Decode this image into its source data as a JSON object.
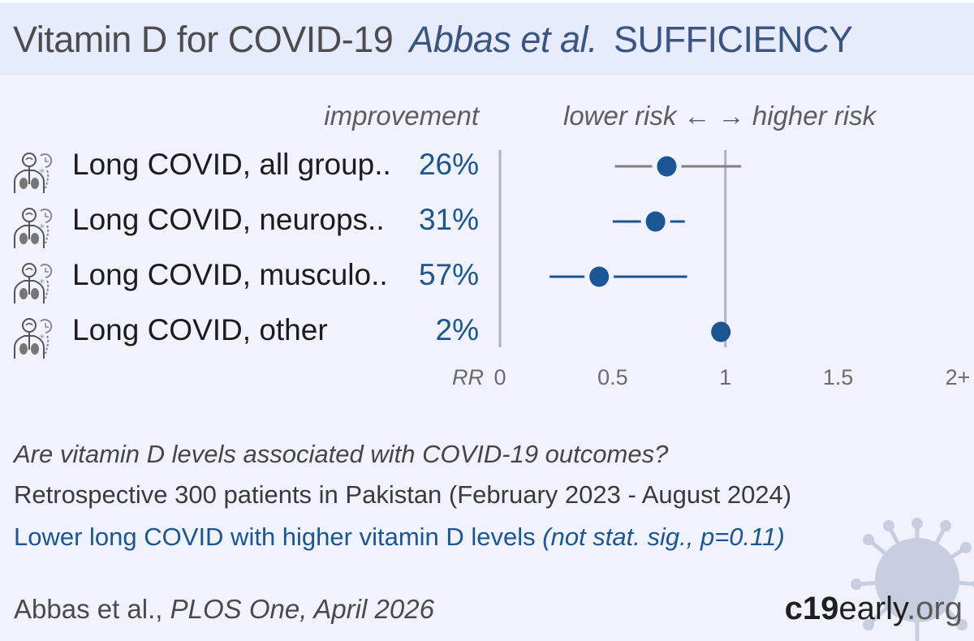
{
  "header": {
    "title": "Vitamin D for COVID-19",
    "authors": "Abbas et al.",
    "tag": "SUFFICIENCY"
  },
  "columns": {
    "improvement": "improvement",
    "risk": "lower risk ← → higher risk"
  },
  "icon": "long-covid-person-icon",
  "chart_data": {
    "type": "scatter",
    "subtype": "forest-plot",
    "xlabel": "RR",
    "xlim": [
      0,
      2
    ],
    "reference_line": 1,
    "ticks": [
      "0",
      "0.5",
      "1",
      "1.5",
      "2+"
    ],
    "tick_values": [
      0,
      0.5,
      1,
      1.5,
      2
    ],
    "rows": [
      {
        "label": "Long COVID, all group..",
        "improvement": "26%",
        "rr": 0.74,
        "ci": [
          0.51,
          1.07
        ],
        "ci_color": "#808080"
      },
      {
        "label": "Long COVID, neurops..",
        "improvement": "31%",
        "rr": 0.69,
        "ci": [
          0.5,
          0.82
        ],
        "ci_color": "#1c5593"
      },
      {
        "label": "Long COVID, musculo..",
        "improvement": "57%",
        "rr": 0.44,
        "ci": [
          0.22,
          0.83
        ],
        "ci_color": "#1c5593"
      },
      {
        "label": "Long COVID, other",
        "improvement": "2%",
        "rr": 0.98,
        "ci": null,
        "ci_color": "#1c5593"
      }
    ],
    "colors": {
      "point": "#1c5593",
      "axis": "#aeb1c0"
    }
  },
  "summary": {
    "question": "Are vitamin D levels associated with COVID-19 outcomes?",
    "design": "Retrospective 300 patients in Pakistan (February 2023 - August 2024)",
    "result_main": "Lower long COVID with higher vitamin D levels ",
    "result_paren": "(not stat. sig., p=0.11)"
  },
  "citation": {
    "authors": "Abbas et al., ",
    "journal": "PLOS One, April 2026"
  },
  "brand": {
    "bold": "c19",
    "mid": "early",
    "tld": ".org"
  }
}
